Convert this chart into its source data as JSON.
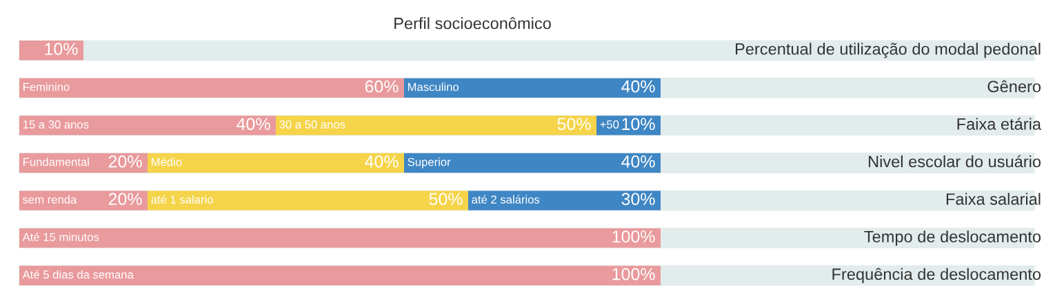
{
  "chart_data": {
    "type": "bar",
    "orientation": "horizontal",
    "stacked": true,
    "title": "Perfil socioeconômico",
    "categories": [
      "Percentual de utilização do modal pedonal",
      "Gênero",
      "Faixa etária",
      "Nivel escolar do usuário",
      "Faixa salarial",
      "Tempo de deslocamento",
      "Frequência de deslocamento"
    ],
    "series": [
      {
        "colors": [
          "#e99a9c",
          "#e99a9c",
          "#e99a9c",
          "#e99a9c",
          "#e99a9c",
          "#e99a9c",
          "#e99a9c"
        ],
        "values": [
          10,
          60,
          40,
          20,
          20,
          100,
          100
        ],
        "value_labels": [
          "10%",
          "60%",
          "40%",
          "20%",
          "20%",
          "100%",
          "100%"
        ]
      },
      {
        "colors": [
          null,
          "#3f86c4",
          "#f5d44a",
          "#f5d44a",
          "#f5d44a",
          null,
          null
        ],
        "values": [
          null,
          40,
          50,
          40,
          50,
          null,
          null
        ],
        "value_labels": [
          null,
          "40%",
          "50%",
          "40%",
          "50%",
          null,
          null
        ]
      },
      {
        "colors": [
          null,
          null,
          "#3f86c4",
          "#3f86c4",
          "#3f86c4",
          null,
          null
        ],
        "values": [
          null,
          null,
          10,
          40,
          30,
          null,
          null
        ],
        "value_labels": [
          null,
          null,
          "10%",
          "40%",
          "30%",
          null,
          null
        ]
      }
    ],
    "annotations": [
      {
        "text": "Feminino",
        "x": 0,
        "y": "Gênero"
      },
      {
        "text": "Masculino",
        "x": 60,
        "y": "Gênero"
      },
      {
        "text": "15 a 30 anos",
        "x": 0,
        "y": "Faixa etária"
      },
      {
        "text": "30 a 50 anos",
        "x": 40,
        "y": "Faixa etária"
      },
      {
        "text": "+50",
        "x": 90,
        "y": "Faixa etária"
      },
      {
        "text": "Fundamental",
        "x": 0,
        "y": "Nivel escolar do usuário"
      },
      {
        "text": "Médio",
        "x": 20,
        "y": "Nivel escolar do usuário"
      },
      {
        "text": "Superior",
        "x": 60,
        "y": "Nivel escolar do usuário"
      },
      {
        "text": "sem renda",
        "x": 0,
        "y": "Faixa salarial"
      },
      {
        "text": "até 1 salario",
        "x": 20,
        "y": "Faixa salarial"
      },
      {
        "text": "até 2 salários",
        "x": 70,
        "y": "Faixa salarial"
      },
      {
        "text": "Até 15 minutos",
        "x": 0,
        "y": "Tempo de deslocamento"
      },
      {
        "text": "Até 5 dias da semana",
        "x": 0,
        "y": "Frequência de deslocamento"
      }
    ],
    "legend": false
  }
}
